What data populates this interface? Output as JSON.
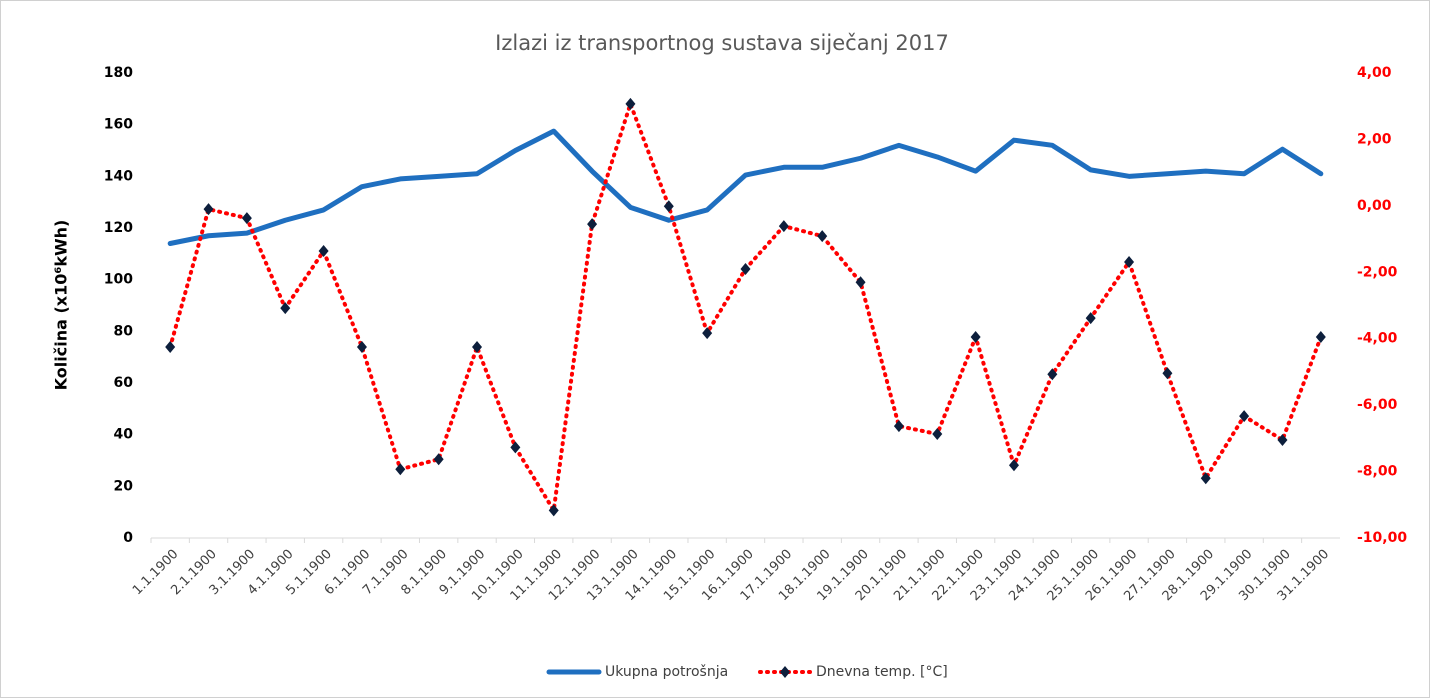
{
  "chart_data": {
    "type": "line",
    "title": "Izlazi iz transportnog sustava siječanj 2017",
    "y_label": "Količina (x10⁶kWh)",
    "categories": [
      "1.1.1900",
      "2.1.1900",
      "3.1.1900",
      "4.1.1900",
      "5.1.1900",
      "6.1.1900",
      "7.1.1900",
      "8.1.1900",
      "9.1.1900",
      "10.1.1900",
      "11.1.1900",
      "12.1.1900",
      "13.1.1900",
      "14.1.1900",
      "15.1.1900",
      "16.1.1900",
      "17.1.1900",
      "18.1.1900",
      "19.1.1900",
      "20.1.1900",
      "21.1.1900",
      "22.1.1900",
      "23.1.1900",
      "24.1.1900",
      "25.1.1900",
      "26.1.1900",
      "27.1.1900",
      "28.1.1900",
      "29.1.1900",
      "30.1.1900",
      "31.1.1900"
    ],
    "series": [
      {
        "name": "Ukupna potrošnja",
        "color": "#1f6fc0",
        "axis": "y",
        "values": [
          114,
          117,
          118,
          123,
          127,
          136,
          139,
          140,
          141,
          150,
          157.5,
          142,
          128,
          123,
          127,
          140.5,
          143.5,
          143.5,
          147,
          152,
          147.5,
          142,
          154,
          152,
          142.5,
          140,
          141,
          142,
          141,
          150.5,
          141
        ]
      },
      {
        "name": "Dnevna temp. [°C]",
        "color": "#ff0000",
        "marker_color": "#0d1f3c",
        "axis": "y2",
        "values": [
          -4.25,
          -0.1,
          -0.37,
          -3.08,
          -1.36,
          -4.25,
          -7.93,
          -7.63,
          -4.25,
          -7.27,
          -9.17,
          -0.55,
          3.07,
          -0.01,
          -3.83,
          -1.9,
          -0.61,
          -0.91,
          -2.3,
          -6.63,
          -6.87,
          -3.95,
          -7.81,
          -5.07,
          -3.38,
          -1.69,
          -5.04,
          -8.2,
          -6.33,
          -7.05,
          -3.95
        ]
      }
    ],
    "ylim": [
      0,
      180
    ],
    "yticks": [
      0,
      20,
      40,
      60,
      80,
      100,
      120,
      140,
      160,
      180
    ],
    "y2lim": [
      -10,
      4
    ],
    "y2ticks": [
      {
        "value": -10,
        "label": "-10,00"
      },
      {
        "value": -8,
        "label": "-8,00"
      },
      {
        "value": -6,
        "label": "-6,00"
      },
      {
        "value": -4,
        "label": "-4,00"
      },
      {
        "value": -2,
        "label": "-2,00"
      },
      {
        "value": 0,
        "label": "0,00"
      },
      {
        "value": 2,
        "label": "2,00"
      },
      {
        "value": 4,
        "label": "4,00"
      }
    ],
    "y2_color": "#ff0000",
    "legend": "bottom",
    "grid": false
  }
}
